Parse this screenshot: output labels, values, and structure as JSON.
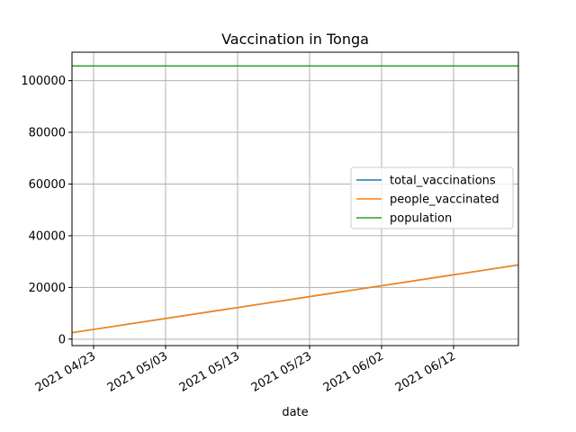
{
  "chart_data": {
    "type": "line",
    "title": "Vaccination in Tonga",
    "xlabel": "date",
    "ylabel": "",
    "x_range": [
      "2021-04-20",
      "2021-06-21"
    ],
    "ylim": [
      -2500,
      111000
    ],
    "grid": true,
    "legend_position": "center-right",
    "x_ticks": [
      {
        "date": "2021-04-23",
        "label": "2021 04/23"
      },
      {
        "date": "2021-05-03",
        "label": "2021 05/03"
      },
      {
        "date": "2021-05-13",
        "label": "2021 05/13"
      },
      {
        "date": "2021-05-23",
        "label": "2021 05/23"
      },
      {
        "date": "2021-06-02",
        "label": "2021 06/02"
      },
      {
        "date": "2021-06-12",
        "label": "2021 06/12"
      }
    ],
    "y_ticks": [
      {
        "value": 0,
        "label": "0"
      },
      {
        "value": 20000,
        "label": "20000"
      },
      {
        "value": 40000,
        "label": "40000"
      },
      {
        "value": 60000,
        "label": "60000"
      },
      {
        "value": 80000,
        "label": "80000"
      },
      {
        "value": 100000,
        "label": "100000"
      }
    ],
    "series": [
      {
        "name": "total_vaccinations",
        "color": "#1f77b4",
        "points": [
          {
            "date": "2021-04-20",
            "value": 2500
          },
          {
            "date": "2021-06-21",
            "value": 28700
          }
        ]
      },
      {
        "name": "people_vaccinated",
        "color": "#ff7f0e",
        "points": [
          {
            "date": "2021-04-20",
            "value": 2500
          },
          {
            "date": "2021-06-21",
            "value": 28700
          }
        ]
      },
      {
        "name": "population",
        "color": "#2ca02c",
        "points": [
          {
            "date": "2021-04-20",
            "value": 105700
          },
          {
            "date": "2021-06-21",
            "value": 105700
          }
        ]
      }
    ]
  }
}
